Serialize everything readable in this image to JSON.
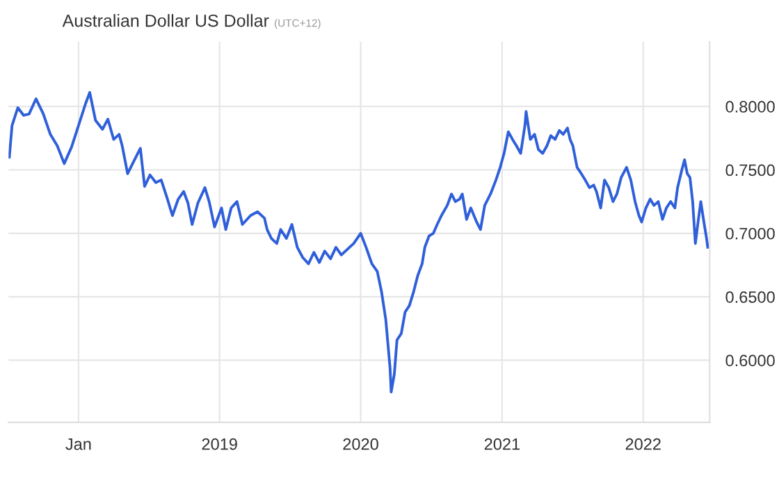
{
  "chart_data": {
    "type": "line",
    "title": "Australian Dollar US Dollar",
    "subtitle": "(UTC+12)",
    "x": [
      "2017-07-06",
      "2017-07-13",
      "2017-07-28",
      "2017-08-12",
      "2017-08-26",
      "2017-09-13",
      "2017-10-02",
      "2017-10-20",
      "2017-11-07",
      "2017-11-25",
      "2017-12-14",
      "2018-01-01",
      "2018-01-19",
      "2018-01-30",
      "2018-02-14",
      "2018-03-04",
      "2018-03-18",
      "2018-04-02",
      "2018-04-16",
      "2018-04-24",
      "2018-05-08",
      "2018-05-26",
      "2018-06-10",
      "2018-06-21",
      "2018-07-05",
      "2018-07-20",
      "2018-08-03",
      "2018-08-18",
      "2018-09-01",
      "2018-09-16",
      "2018-09-30",
      "2018-10-11",
      "2018-10-22",
      "2018-11-06",
      "2018-11-24",
      "2018-12-05",
      "2018-12-19",
      "2019-01-06",
      "2019-01-17",
      "2019-01-31",
      "2019-02-15",
      "2019-03-01",
      "2019-03-22",
      "2019-04-09",
      "2019-04-27",
      "2019-05-04",
      "2019-05-15",
      "2019-05-29",
      "2019-06-08",
      "2019-06-23",
      "2019-07-07",
      "2019-07-21",
      "2019-08-04",
      "2019-08-19",
      "2019-09-02",
      "2019-09-16",
      "2019-09-30",
      "2019-10-15",
      "2019-10-29",
      "2019-11-12",
      "2019-11-26",
      "2019-12-14",
      "2020-01-01",
      "2020-01-15",
      "2020-01-30",
      "2020-02-13",
      "2020-02-24",
      "2020-03-06",
      "2020-03-17",
      "2020-03-20",
      "2020-03-28",
      "2020-04-04",
      "2020-04-15",
      "2020-04-25",
      "2020-05-06",
      "2020-05-17",
      "2020-05-28",
      "2020-06-08",
      "2020-06-15",
      "2020-06-26",
      "2020-07-07",
      "2020-07-17",
      "2020-07-28",
      "2020-08-12",
      "2020-08-23",
      "2020-09-02",
      "2020-09-13",
      "2020-09-20",
      "2020-10-01",
      "2020-10-12",
      "2020-10-27",
      "2020-11-06",
      "2020-11-17",
      "2020-12-02",
      "2020-12-16",
      "2020-12-27",
      "2021-01-06",
      "2021-01-17",
      "2021-01-28",
      "2021-02-07",
      "2021-02-18",
      "2021-03-01",
      "2021-03-04",
      "2021-03-15",
      "2021-03-26",
      "2021-04-05",
      "2021-04-16",
      "2021-04-27",
      "2021-05-07",
      "2021-05-18",
      "2021-05-29",
      "2021-06-08",
      "2021-06-19",
      "2021-06-26",
      "2021-07-03",
      "2021-07-14",
      "2021-07-25",
      "2021-08-04",
      "2021-08-15",
      "2021-08-26",
      "2021-09-02",
      "2021-09-13",
      "2021-09-23",
      "2021-10-04",
      "2021-10-15",
      "2021-10-25",
      "2021-11-05",
      "2021-11-19",
      "2021-11-30",
      "2021-12-11",
      "2021-12-21",
      "2021-12-28",
      "2022-01-08",
      "2022-01-19",
      "2022-01-29",
      "2022-02-09",
      "2022-02-20",
      "2022-03-02",
      "2022-03-13",
      "2022-03-24",
      "2022-03-31",
      "2022-04-11",
      "2022-04-18",
      "2022-04-25",
      "2022-05-02",
      "2022-05-09",
      "2022-05-16",
      "2022-05-23",
      "2022-05-30",
      "2022-06-07",
      "2022-06-14",
      "2022-06-17"
    ],
    "series": [
      {
        "color": "#2f5fd9",
        "values": [
          0.76,
          0.785,
          0.799,
          0.793,
          0.794,
          0.806,
          0.794,
          0.778,
          0.769,
          0.755,
          0.768,
          0.785,
          0.802,
          0.811,
          0.789,
          0.782,
          0.79,
          0.774,
          0.778,
          0.769,
          0.747,
          0.758,
          0.767,
          0.737,
          0.746,
          0.74,
          0.742,
          0.728,
          0.714,
          0.727,
          0.733,
          0.724,
          0.707,
          0.724,
          0.736,
          0.725,
          0.705,
          0.72,
          0.703,
          0.72,
          0.725,
          0.707,
          0.714,
          0.717,
          0.712,
          0.703,
          0.696,
          0.692,
          0.703,
          0.696,
          0.707,
          0.689,
          0.681,
          0.676,
          0.685,
          0.677,
          0.686,
          0.68,
          0.689,
          0.683,
          0.687,
          0.692,
          0.7,
          0.689,
          0.676,
          0.67,
          0.654,
          0.632,
          0.594,
          0.575,
          0.589,
          0.616,
          0.621,
          0.638,
          0.643,
          0.654,
          0.667,
          0.676,
          0.689,
          0.698,
          0.7,
          0.707,
          0.714,
          0.722,
          0.731,
          0.725,
          0.727,
          0.731,
          0.711,
          0.72,
          0.709,
          0.703,
          0.722,
          0.731,
          0.742,
          0.752,
          0.763,
          0.78,
          0.774,
          0.769,
          0.763,
          0.785,
          0.796,
          0.774,
          0.778,
          0.766,
          0.763,
          0.769,
          0.777,
          0.774,
          0.781,
          0.778,
          0.783,
          0.774,
          0.769,
          0.752,
          0.747,
          0.742,
          0.736,
          0.738,
          0.733,
          0.72,
          0.742,
          0.736,
          0.725,
          0.731,
          0.744,
          0.752,
          0.742,
          0.725,
          0.714,
          0.709,
          0.72,
          0.727,
          0.722,
          0.725,
          0.711,
          0.72,
          0.725,
          0.72,
          0.736,
          0.75,
          0.758,
          0.747,
          0.744,
          0.725,
          0.692,
          0.709,
          0.725,
          0.709,
          0.696,
          0.689
        ]
      }
    ],
    "xlim": [
      "2017-07-04",
      "2022-06-22"
    ],
    "xticks": [
      {
        "value": "2018-01-01",
        "label": "Jan"
      },
      {
        "value": "2019-01-01",
        "label": "2019"
      },
      {
        "value": "2020-01-01",
        "label": "2020"
      },
      {
        "value": "2021-01-01",
        "label": "2021"
      },
      {
        "value": "2022-01-01",
        "label": "2022"
      }
    ],
    "ylim": [
      0.551,
      0.851
    ],
    "yticks": [
      {
        "value": 0.6,
        "label": "0.6000"
      },
      {
        "value": 0.65,
        "label": "0.6500"
      },
      {
        "value": 0.7,
        "label": "0.7000"
      },
      {
        "value": 0.75,
        "label": "0.7500"
      },
      {
        "value": 0.8,
        "label": "0.8000"
      }
    ],
    "grid": true,
    "marker": "none",
    "line_style": "solid",
    "legend": false
  }
}
